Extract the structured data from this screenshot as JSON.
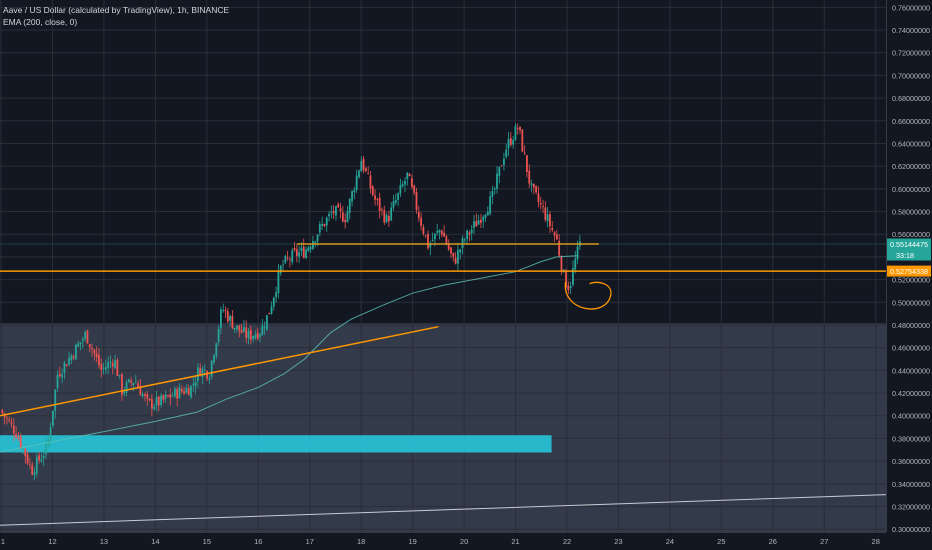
{
  "legend": {
    "title": "Aave / US Dollar (calculated by TradingView), 1h, BINANCE",
    "indicator": "EMA (200, close, 0)"
  },
  "colors": {
    "background": "#131722",
    "grid": "#2a2e39",
    "up": "#26a69a",
    "down": "#ef5350",
    "ema": "#5cc4b6",
    "orange": "#ff9800",
    "zone": "#3a4150",
    "cyan_box": "#26c6da",
    "axis_text": "#b2b5be",
    "price_tag": "#26a69a",
    "orange_tag": "#ff9800"
  },
  "chart_data": {
    "type": "candlestick",
    "symbol": "Aave / US Dollar",
    "timeframe": "1h",
    "exchange": "BINANCE",
    "x_ticks": [
      "1",
      "12",
      "13",
      "14",
      "15",
      "16",
      "17",
      "18",
      "19",
      "20",
      "21",
      "22",
      "23",
      "24",
      "25",
      "26",
      "27",
      "28"
    ],
    "y_ticks": [
      "0.76000000",
      "0.74000000",
      "0.72000000",
      "0.70000000",
      "0.68000000",
      "0.66000000",
      "0.64000000",
      "0.62000000",
      "0.60000000",
      "0.58000000",
      "0.56000000",
      "0.54000000",
      "0.52000000",
      "0.50000000",
      "0.48000000",
      "0.46000000",
      "0.44000000",
      "0.42000000",
      "0.40000000",
      "0.38000000",
      "0.36000000",
      "0.34000000",
      "0.32000000",
      "0.30000000"
    ],
    "ylim": [
      0.2975,
      0.7665
    ],
    "xlim": [
      10.98,
      28.2
    ],
    "price_tag": {
      "label": "0.55144475",
      "countdown": "33:18",
      "value": 0.5514
    },
    "orange_tag": {
      "label": "0.52754338",
      "value": 0.5275
    },
    "swing_points": [
      [
        10.98,
        0.405
      ],
      [
        11.3,
        0.385
      ],
      [
        11.6,
        0.352
      ],
      [
        11.9,
        0.372
      ],
      [
        12.1,
        0.437
      ],
      [
        12.35,
        0.452
      ],
      [
        12.65,
        0.472
      ],
      [
        12.95,
        0.44
      ],
      [
        13.2,
        0.45
      ],
      [
        13.35,
        0.422
      ],
      [
        13.6,
        0.432
      ],
      [
        13.85,
        0.41
      ],
      [
        14.1,
        0.412
      ],
      [
        14.4,
        0.42
      ],
      [
        14.7,
        0.425
      ],
      [
        14.85,
        0.441
      ],
      [
        15.05,
        0.438
      ],
      [
        15.3,
        0.495
      ],
      [
        15.55,
        0.478
      ],
      [
        15.8,
        0.47
      ],
      [
        16.05,
        0.475
      ],
      [
        16.2,
        0.49
      ],
      [
        16.45,
        0.532
      ],
      [
        16.7,
        0.542
      ],
      [
        16.9,
        0.545
      ],
      [
        17.2,
        0.565
      ],
      [
        17.45,
        0.58
      ],
      [
        17.7,
        0.575
      ],
      [
        18.0,
        0.626
      ],
      [
        18.25,
        0.592
      ],
      [
        18.5,
        0.572
      ],
      [
        18.9,
        0.612
      ],
      [
        19.1,
        0.58
      ],
      [
        19.3,
        0.55
      ],
      [
        19.55,
        0.565
      ],
      [
        19.8,
        0.535
      ],
      [
        20.0,
        0.555
      ],
      [
        20.3,
        0.574
      ],
      [
        20.55,
        0.592
      ],
      [
        20.8,
        0.635
      ],
      [
        21.05,
        0.655
      ],
      [
        21.3,
        0.6
      ],
      [
        21.55,
        0.58
      ],
      [
        21.8,
        0.555
      ],
      [
        21.95,
        0.52
      ],
      [
        22.05,
        0.513
      ],
      [
        22.15,
        0.535
      ],
      [
        22.25,
        0.5514
      ]
    ],
    "ema_points": [
      [
        10.98,
        0.368
      ],
      [
        12.0,
        0.377
      ],
      [
        13.0,
        0.386
      ],
      [
        14.0,
        0.395
      ],
      [
        14.8,
        0.403
      ],
      [
        15.4,
        0.415
      ],
      [
        16.0,
        0.425
      ],
      [
        16.5,
        0.437
      ],
      [
        16.9,
        0.45
      ],
      [
        17.4,
        0.473
      ],
      [
        17.8,
        0.485
      ],
      [
        18.4,
        0.497
      ],
      [
        19.0,
        0.508
      ],
      [
        19.6,
        0.515
      ],
      [
        20.3,
        0.521
      ],
      [
        21.0,
        0.527
      ],
      [
        21.5,
        0.536
      ],
      [
        21.8,
        0.54
      ],
      [
        22.2,
        0.541
      ]
    ],
    "annotations": {
      "resistance_line": {
        "x": [
          16.75,
          22.62
        ],
        "y": [
          0.5514,
          0.5514
        ]
      },
      "horizontal_line": {
        "y": 0.5275
      },
      "uptrend_line": {
        "x": [
          10.98,
          19.5
        ],
        "y": [
          0.4,
          0.4785
        ]
      },
      "long_trend_line": {
        "x": [
          10.98,
          28.2
        ],
        "y": [
          0.3035,
          0.3305
        ]
      },
      "demand_zone": {
        "y": [
          0.2975,
          0.4815
        ]
      },
      "cyan_zone": {
        "x": [
          10.98,
          21.7
        ],
        "y": [
          0.3676,
          0.3828
        ]
      },
      "circle": {
        "x": 22.4,
        "y": 0.5075
      }
    }
  }
}
